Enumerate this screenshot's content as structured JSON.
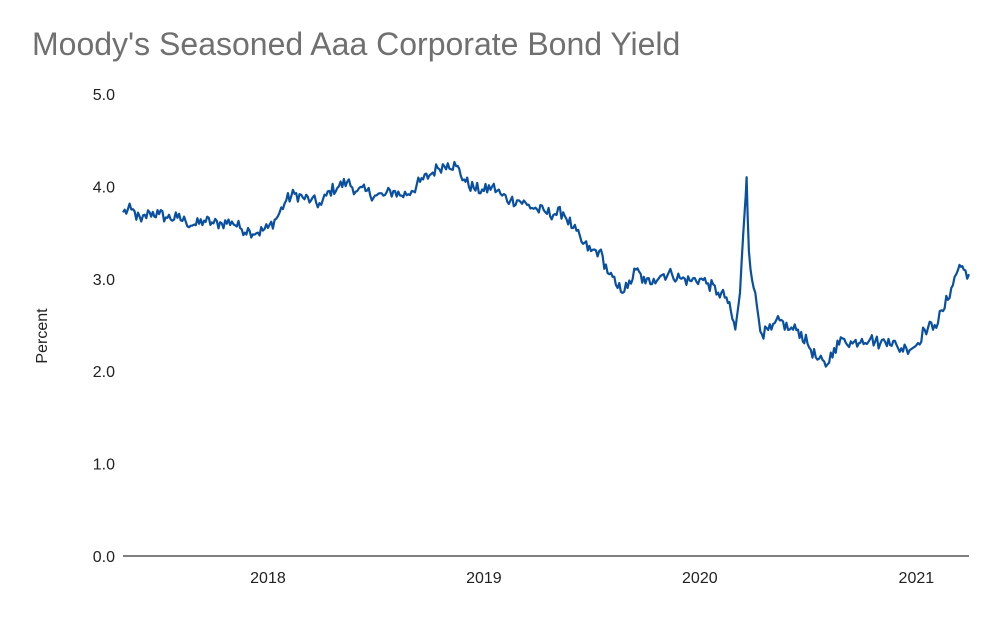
{
  "chart_data": {
    "type": "line",
    "title": "Moody's Seasoned Aaa Corporate Bond Yield",
    "xlabel": "",
    "ylabel": "Percent",
    "ylim": [
      0,
      5
    ],
    "yticks": [
      "0.0",
      "1.0",
      "2.0",
      "3.0",
      "4.0",
      "5.0"
    ],
    "xticks": [
      {
        "label": "2018",
        "date": "2018-01-01"
      },
      {
        "label": "2019",
        "date": "2019-01-01"
      },
      {
        "label": "2020",
        "date": "2020-01-01"
      },
      {
        "label": "2021",
        "date": "2021-01-01"
      }
    ],
    "xlim": [
      "2017-05-01",
      "2021-03-31"
    ],
    "grid": false,
    "legend": "none",
    "series": [
      {
        "color": "#0a50a1",
        "points": [
          [
            "2017-05-01",
            3.72
          ],
          [
            "2017-05-15",
            3.75
          ],
          [
            "2017-06-01",
            3.62
          ],
          [
            "2017-06-15",
            3.72
          ],
          [
            "2017-07-01",
            3.7
          ],
          [
            "2017-07-15",
            3.66
          ],
          [
            "2017-08-01",
            3.66
          ],
          [
            "2017-08-15",
            3.62
          ],
          [
            "2017-09-01",
            3.58
          ],
          [
            "2017-09-15",
            3.63
          ],
          [
            "2017-10-01",
            3.6
          ],
          [
            "2017-10-15",
            3.6
          ],
          [
            "2017-11-01",
            3.62
          ],
          [
            "2017-11-15",
            3.55
          ],
          [
            "2017-12-01",
            3.52
          ],
          [
            "2017-12-15",
            3.5
          ],
          [
            "2018-01-01",
            3.55
          ],
          [
            "2018-01-15",
            3.65
          ],
          [
            "2018-02-01",
            3.85
          ],
          [
            "2018-02-15",
            3.92
          ],
          [
            "2018-03-01",
            3.88
          ],
          [
            "2018-03-15",
            3.85
          ],
          [
            "2018-04-01",
            3.8
          ],
          [
            "2018-04-15",
            3.95
          ],
          [
            "2018-05-01",
            4.0
          ],
          [
            "2018-05-15",
            4.05
          ],
          [
            "2018-06-01",
            3.95
          ],
          [
            "2018-06-15",
            3.95
          ],
          [
            "2018-07-01",
            3.9
          ],
          [
            "2018-07-15",
            3.9
          ],
          [
            "2018-08-01",
            3.95
          ],
          [
            "2018-08-15",
            3.9
          ],
          [
            "2018-09-01",
            3.95
          ],
          [
            "2018-09-15",
            4.05
          ],
          [
            "2018-10-01",
            4.12
          ],
          [
            "2018-10-15",
            4.2
          ],
          [
            "2018-11-01",
            4.25
          ],
          [
            "2018-11-15",
            4.22
          ],
          [
            "2018-12-01",
            4.05
          ],
          [
            "2018-12-15",
            3.98
          ],
          [
            "2019-01-01",
            3.95
          ],
          [
            "2019-01-15",
            4.0
          ],
          [
            "2019-02-01",
            3.9
          ],
          [
            "2019-02-15",
            3.85
          ],
          [
            "2019-03-01",
            3.85
          ],
          [
            "2019-03-15",
            3.8
          ],
          [
            "2019-04-01",
            3.75
          ],
          [
            "2019-04-15",
            3.72
          ],
          [
            "2019-05-01",
            3.7
          ],
          [
            "2019-05-15",
            3.72
          ],
          [
            "2019-06-01",
            3.55
          ],
          [
            "2019-06-15",
            3.4
          ],
          [
            "2019-07-01",
            3.3
          ],
          [
            "2019-07-15",
            3.3
          ],
          [
            "2019-08-01",
            3.05
          ],
          [
            "2019-08-15",
            2.9
          ],
          [
            "2019-09-01",
            2.9
          ],
          [
            "2019-09-15",
            3.1
          ],
          [
            "2019-10-01",
            2.95
          ],
          [
            "2019-10-15",
            3.0
          ],
          [
            "2019-11-01",
            3.05
          ],
          [
            "2019-11-15",
            3.05
          ],
          [
            "2019-12-01",
            3.0
          ],
          [
            "2019-12-15",
            2.98
          ],
          [
            "2020-01-01",
            3.0
          ],
          [
            "2020-01-15",
            2.95
          ],
          [
            "2020-02-01",
            2.85
          ],
          [
            "2020-02-15",
            2.8
          ],
          [
            "2020-03-01",
            2.45
          ],
          [
            "2020-03-09",
            2.85
          ],
          [
            "2020-03-17",
            3.75
          ],
          [
            "2020-03-20",
            4.1
          ],
          [
            "2020-03-24",
            3.3
          ],
          [
            "2020-04-01",
            2.9
          ],
          [
            "2020-04-15",
            2.4
          ],
          [
            "2020-05-01",
            2.45
          ],
          [
            "2020-05-15",
            2.55
          ],
          [
            "2020-06-01",
            2.45
          ],
          [
            "2020-06-15",
            2.45
          ],
          [
            "2020-07-01",
            2.3
          ],
          [
            "2020-07-15",
            2.15
          ],
          [
            "2020-08-01",
            2.05
          ],
          [
            "2020-08-15",
            2.25
          ],
          [
            "2020-09-01",
            2.35
          ],
          [
            "2020-09-15",
            2.3
          ],
          [
            "2020-10-01",
            2.35
          ],
          [
            "2020-10-15",
            2.35
          ],
          [
            "2020-11-01",
            2.3
          ],
          [
            "2020-11-15",
            2.35
          ],
          [
            "2020-12-01",
            2.25
          ],
          [
            "2020-12-15",
            2.25
          ],
          [
            "2021-01-01",
            2.28
          ],
          [
            "2021-01-15",
            2.45
          ],
          [
            "2021-02-01",
            2.5
          ],
          [
            "2021-02-15",
            2.65
          ],
          [
            "2021-03-01",
            2.9
          ],
          [
            "2021-03-15",
            3.15
          ],
          [
            "2021-03-22",
            3.1
          ],
          [
            "2021-03-31",
            3.05
          ]
        ]
      }
    ]
  }
}
